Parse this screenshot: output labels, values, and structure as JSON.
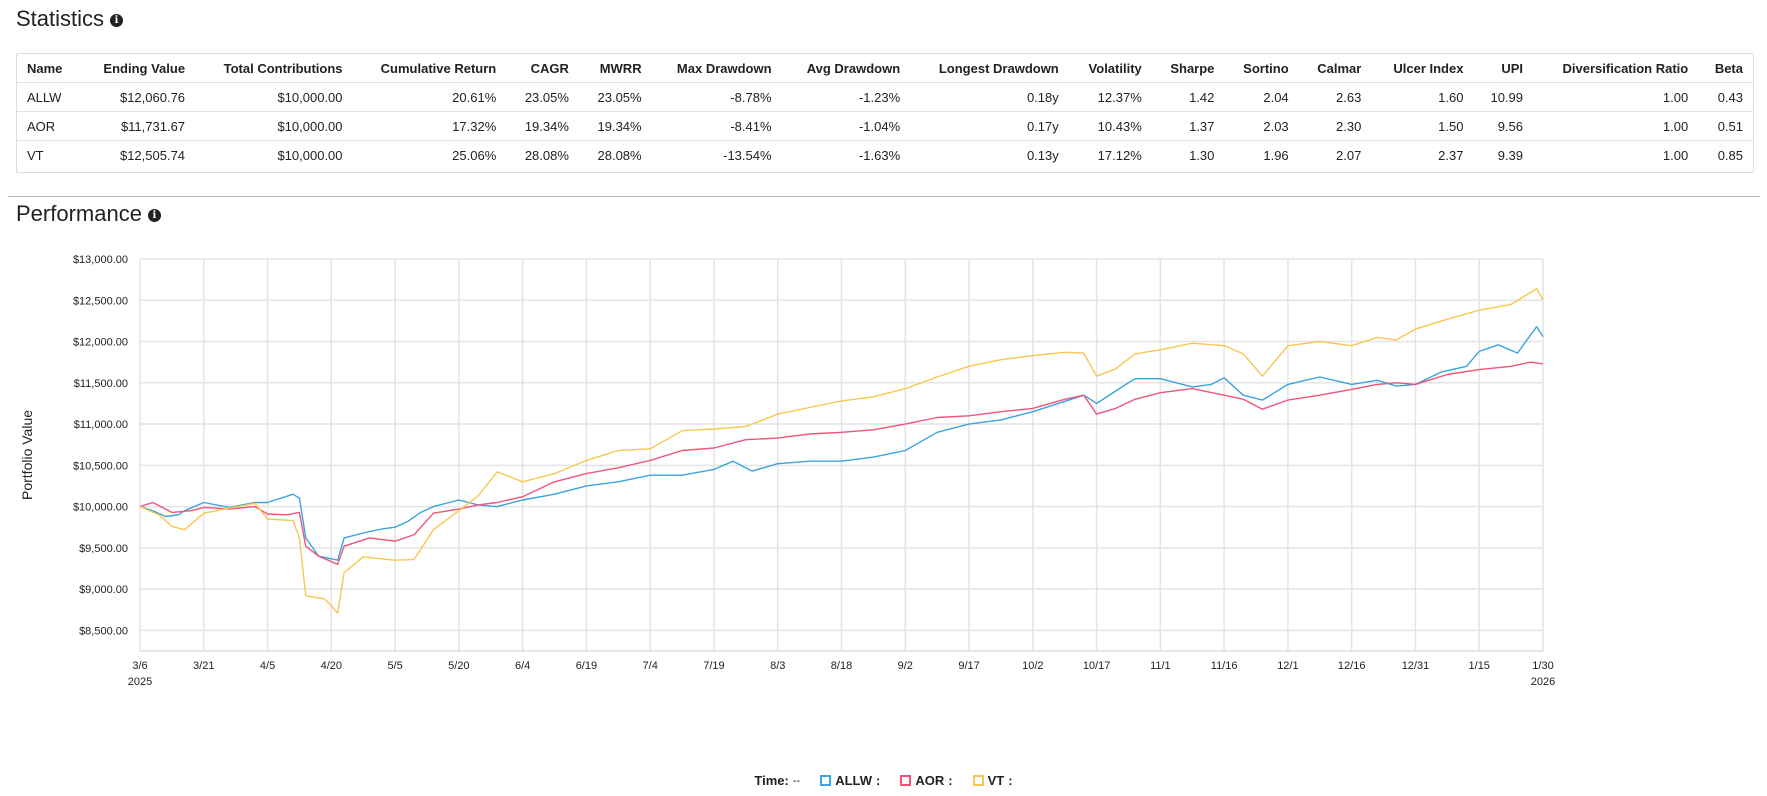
{
  "statistics": {
    "title": "Statistics",
    "columns": [
      "Name",
      "Ending Value",
      "Total Contributions",
      "Cumulative Return",
      "CAGR",
      "MWRR",
      "Max Drawdown",
      "Avg Drawdown",
      "Longest Drawdown",
      "Volatility",
      "Sharpe",
      "Sortino",
      "Calmar",
      "Ulcer Index",
      "UPI",
      "Diversification Ratio",
      "Beta"
    ],
    "rows": [
      [
        "ALLW",
        "$12,060.76",
        "$10,000.00",
        "20.61%",
        "23.05%",
        "23.05%",
        "-8.78%",
        "-1.23%",
        "0.18y",
        "12.37%",
        "1.42",
        "2.04",
        "2.63",
        "1.60",
        "10.99",
        "1.00",
        "0.43"
      ],
      [
        "AOR",
        "$11,731.67",
        "$10,000.00",
        "17.32%",
        "19.34%",
        "19.34%",
        "-8.41%",
        "-1.04%",
        "0.17y",
        "10.43%",
        "1.37",
        "2.03",
        "2.30",
        "1.50",
        "9.56",
        "1.00",
        "0.51"
      ],
      [
        "VT",
        "$12,505.74",
        "$10,000.00",
        "25.06%",
        "28.08%",
        "28.08%",
        "-13.54%",
        "-1.63%",
        "0.13y",
        "17.12%",
        "1.30",
        "1.96",
        "2.07",
        "2.37",
        "9.39",
        "1.00",
        "0.85"
      ]
    ]
  },
  "performance": {
    "title": "Performance"
  },
  "legend": {
    "time_label": "Time:",
    "time_value": "--"
  },
  "colors": {
    "ALLW": "#3ba3e0",
    "AOR": "#f0557a",
    "VT": "#f7c752",
    "grid": "#e4e4e4"
  },
  "chart_data": {
    "type": "line",
    "ylabel": "Portfolio Value",
    "ylim": [
      8250,
      13000
    ],
    "y_ticks": [
      "$13,000.00",
      "$12,500.00",
      "$12,000.00",
      "$11,500.00",
      "$11,000.00",
      "$10,500.00",
      "$10,000.00",
      "$9,500.00",
      "$9,000.00",
      "$8,500.00"
    ],
    "y_tick_values": [
      13000,
      12500,
      12000,
      11500,
      11000,
      10500,
      10000,
      9500,
      9000,
      8500
    ],
    "x_ticks": [
      "3/6",
      "3/21",
      "4/5",
      "4/20",
      "5/5",
      "5/20",
      "6/4",
      "6/19",
      "7/4",
      "7/19",
      "8/3",
      "8/18",
      "9/2",
      "9/17",
      "10/2",
      "10/17",
      "11/1",
      "11/16",
      "12/1",
      "12/16",
      "12/31",
      "1/15",
      "1/30"
    ],
    "x_years": [
      {
        "label": "2025",
        "index": 0
      },
      {
        "label": "2026",
        "index": 22
      }
    ],
    "series": [
      {
        "name": "ALLW",
        "values": [
          [
            0,
            10000
          ],
          [
            0.2,
            9950
          ],
          [
            0.4,
            9880
          ],
          [
            0.6,
            9900
          ],
          [
            0.7,
            9950
          ],
          [
            1,
            10050
          ],
          [
            1.4,
            9990
          ],
          [
            1.6,
            10020
          ],
          [
            1.8,
            10050
          ],
          [
            2,
            10050
          ],
          [
            2.4,
            10150
          ],
          [
            2.5,
            10100
          ],
          [
            2.6,
            9620
          ],
          [
            2.8,
            9400
          ],
          [
            3.1,
            9350
          ],
          [
            3.2,
            9620
          ],
          [
            3.5,
            9680
          ],
          [
            3.8,
            9730
          ],
          [
            4,
            9750
          ],
          [
            4.2,
            9820
          ],
          [
            4.4,
            9930
          ],
          [
            4.6,
            10000
          ],
          [
            5,
            10080
          ],
          [
            5.3,
            10020
          ],
          [
            5.6,
            10000
          ],
          [
            6,
            10080
          ],
          [
            6.5,
            10150
          ],
          [
            7,
            10250
          ],
          [
            7.5,
            10300
          ],
          [
            8,
            10380
          ],
          [
            8.5,
            10380
          ],
          [
            9,
            10450
          ],
          [
            9.3,
            10550
          ],
          [
            9.6,
            10430
          ],
          [
            10,
            10520
          ],
          [
            10.5,
            10550
          ],
          [
            11,
            10550
          ],
          [
            11.5,
            10600
          ],
          [
            12,
            10680
          ],
          [
            12.5,
            10900
          ],
          [
            13,
            11000
          ],
          [
            13.5,
            11050
          ],
          [
            14,
            11150
          ],
          [
            14.4,
            11250
          ],
          [
            14.6,
            11300
          ],
          [
            14.8,
            11350
          ],
          [
            15,
            11250
          ],
          [
            15.3,
            11400
          ],
          [
            15.6,
            11550
          ],
          [
            16,
            11550
          ],
          [
            16.5,
            11450
          ],
          [
            16.8,
            11480
          ],
          [
            17,
            11560
          ],
          [
            17.3,
            11350
          ],
          [
            17.6,
            11290
          ],
          [
            18,
            11480
          ],
          [
            18.5,
            11570
          ],
          [
            19,
            11480
          ],
          [
            19.4,
            11530
          ],
          [
            19.7,
            11460
          ],
          [
            20,
            11480
          ],
          [
            20.4,
            11630
          ],
          [
            20.8,
            11700
          ],
          [
            21,
            11880
          ],
          [
            21.3,
            11960
          ],
          [
            21.6,
            11860
          ],
          [
            21.9,
            12180
          ],
          [
            22,
            12060
          ]
        ]
      },
      {
        "name": "AOR",
        "values": [
          [
            0,
            10000
          ],
          [
            0.2,
            10050
          ],
          [
            0.5,
            9930
          ],
          [
            0.8,
            9950
          ],
          [
            1,
            9990
          ],
          [
            1.4,
            9970
          ],
          [
            1.8,
            10000
          ],
          [
            2,
            9910
          ],
          [
            2.3,
            9900
          ],
          [
            2.5,
            9930
          ],
          [
            2.6,
            9520
          ],
          [
            2.8,
            9400
          ],
          [
            3.1,
            9300
          ],
          [
            3.2,
            9520
          ],
          [
            3.6,
            9620
          ],
          [
            4,
            9580
          ],
          [
            4.3,
            9660
          ],
          [
            4.6,
            9920
          ],
          [
            5,
            9970
          ],
          [
            5.3,
            10020
          ],
          [
            5.6,
            10050
          ],
          [
            6,
            10120
          ],
          [
            6.5,
            10300
          ],
          [
            7,
            10400
          ],
          [
            7.5,
            10470
          ],
          [
            8,
            10560
          ],
          [
            8.5,
            10680
          ],
          [
            9,
            10710
          ],
          [
            9.5,
            10810
          ],
          [
            10,
            10830
          ],
          [
            10.5,
            10880
          ],
          [
            11,
            10900
          ],
          [
            11.5,
            10930
          ],
          [
            12,
            11000
          ],
          [
            12.5,
            11080
          ],
          [
            13,
            11100
          ],
          [
            13.5,
            11150
          ],
          [
            14,
            11190
          ],
          [
            14.5,
            11300
          ],
          [
            14.8,
            11350
          ],
          [
            15,
            11120
          ],
          [
            15.3,
            11190
          ],
          [
            15.6,
            11300
          ],
          [
            16,
            11380
          ],
          [
            16.5,
            11430
          ],
          [
            17,
            11350
          ],
          [
            17.3,
            11300
          ],
          [
            17.6,
            11180
          ],
          [
            18,
            11290
          ],
          [
            18.5,
            11350
          ],
          [
            19,
            11420
          ],
          [
            19.4,
            11480
          ],
          [
            19.7,
            11500
          ],
          [
            20,
            11480
          ],
          [
            20.5,
            11600
          ],
          [
            21,
            11660
          ],
          [
            21.5,
            11700
          ],
          [
            21.8,
            11750
          ],
          [
            22,
            11730
          ]
        ]
      },
      {
        "name": "VT",
        "values": [
          [
            0,
            10000
          ],
          [
            0.3,
            9900
          ],
          [
            0.5,
            9760
          ],
          [
            0.7,
            9720
          ],
          [
            1,
            9920
          ],
          [
            1.4,
            9980
          ],
          [
            1.8,
            10040
          ],
          [
            2,
            9850
          ],
          [
            2.4,
            9830
          ],
          [
            2.5,
            9620
          ],
          [
            2.6,
            8920
          ],
          [
            2.9,
            8880
          ],
          [
            3.1,
            8710
          ],
          [
            3.2,
            9200
          ],
          [
            3.5,
            9390
          ],
          [
            4,
            9350
          ],
          [
            4.3,
            9360
          ],
          [
            4.6,
            9720
          ],
          [
            5,
            9950
          ],
          [
            5.3,
            10130
          ],
          [
            5.6,
            10420
          ],
          [
            6,
            10300
          ],
          [
            6.5,
            10400
          ],
          [
            7,
            10560
          ],
          [
            7.5,
            10680
          ],
          [
            8,
            10700
          ],
          [
            8.5,
            10920
          ],
          [
            9,
            10940
          ],
          [
            9.5,
            10970
          ],
          [
            10,
            11120
          ],
          [
            10.5,
            11200
          ],
          [
            11,
            11280
          ],
          [
            11.5,
            11330
          ],
          [
            12,
            11430
          ],
          [
            12.5,
            11570
          ],
          [
            13,
            11700
          ],
          [
            13.5,
            11780
          ],
          [
            14,
            11830
          ],
          [
            14.5,
            11870
          ],
          [
            14.8,
            11860
          ],
          [
            15,
            11580
          ],
          [
            15.3,
            11670
          ],
          [
            15.6,
            11850
          ],
          [
            16,
            11900
          ],
          [
            16.5,
            11980
          ],
          [
            17,
            11950
          ],
          [
            17.3,
            11850
          ],
          [
            17.6,
            11580
          ],
          [
            18,
            11950
          ],
          [
            18.5,
            12000
          ],
          [
            19,
            11950
          ],
          [
            19.4,
            12050
          ],
          [
            19.7,
            12020
          ],
          [
            20,
            12150
          ],
          [
            20.5,
            12270
          ],
          [
            21,
            12380
          ],
          [
            21.5,
            12450
          ],
          [
            21.9,
            12640
          ],
          [
            22,
            12505
          ]
        ]
      }
    ]
  }
}
